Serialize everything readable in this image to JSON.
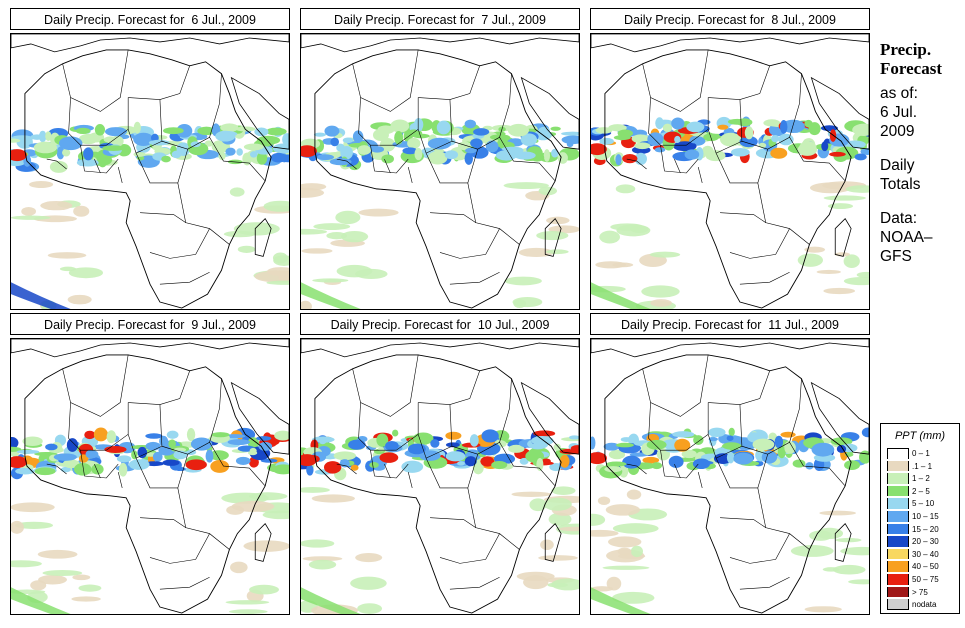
{
  "panels": [
    {
      "title": "Daily Precip. Forecast for  6 Jul., 2009"
    },
    {
      "title": "Daily Precip. Forecast for  7 Jul., 2009"
    },
    {
      "title": "Daily Precip. Forecast for  8 Jul., 2009"
    },
    {
      "title": "Daily Precip. Forecast for  9 Jul., 2009"
    },
    {
      "title": "Daily Precip. Forecast for  10 Jul., 2009"
    },
    {
      "title": "Daily Precip. Forecast for  11 Jul., 2009"
    }
  ],
  "sidebar": {
    "heading1": "Precip.",
    "heading2": "Forecast",
    "asof1": "as of:",
    "asof2": "6 Jul.",
    "asof3": "2009",
    "totals1": "Daily",
    "totals2": "Totals",
    "data1": "Data:",
    "data2": "NOAA–",
    "data3": "GFS"
  },
  "legend": {
    "title": "PPT (mm)",
    "items": [
      {
        "label": "0 – 1",
        "color": "#ffffff"
      },
      {
        "label": ".1 – 1",
        "color": "#e8d9c0"
      },
      {
        "label": "1 – 2",
        "color": "#c8f0b8"
      },
      {
        "label": "2 – 5",
        "color": "#88e070"
      },
      {
        "label": "5 – 10",
        "color": "#98d8f0"
      },
      {
        "label": "10 – 15",
        "color": "#60a8f0"
      },
      {
        "label": "15 – 20",
        "color": "#3880e8"
      },
      {
        "label": "20 – 30",
        "color": "#1848c8"
      },
      {
        "label": "30 – 40",
        "color": "#f8d860"
      },
      {
        "label": "40 – 50",
        "color": "#f8a020"
      },
      {
        "label": "50 – 75",
        "color": "#e82010"
      },
      {
        "label": "> 75",
        "color": "#a01818"
      },
      {
        "label": "nodata",
        "color": "#d0d0d0"
      }
    ]
  }
}
